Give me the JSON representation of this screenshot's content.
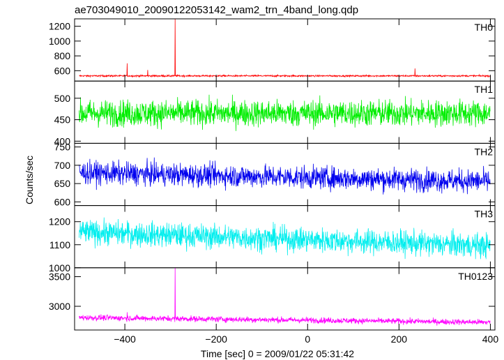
{
  "title": "ae703049010_20090122053142_wam2_trn_4band_long.qdp",
  "ylabel": "Counts/sec",
  "xlabel": "Time [sec] 0 = 2009/01/22 05:31:42",
  "chart_data": {
    "type": "line",
    "xlim": [
      -510,
      410
    ],
    "x_ticks": [
      -400,
      -200,
      0,
      200,
      400
    ],
    "x_tick_labels": [
      "−400",
      "−200",
      "0",
      "200",
      "400"
    ],
    "panels": [
      {
        "name": "TH0",
        "color": "#ff0000",
        "ylim": [
          460,
          1300
        ],
        "y_ticks": [
          600,
          800,
          1000,
          1200
        ],
        "baseline": 530,
        "noise": 8,
        "trend": 0,
        "spikes": [
          [
            -395,
            700
          ],
          [
            -350,
            610
          ],
          [
            -290,
            1300
          ],
          [
            235,
            630
          ]
        ]
      },
      {
        "name": "TH1",
        "color": "#00ee00",
        "ylim": [
          395,
          540
        ],
        "y_ticks": [
          400,
          450,
          500
        ],
        "baseline": 465,
        "noise": 22,
        "trend": 0,
        "spikes": []
      },
      {
        "name": "TH2",
        "color": "#0000ee",
        "ylim": [
          590,
          760
        ],
        "y_ticks": [
          600,
          650,
          700,
          750
        ],
        "baseline": 668,
        "noise": 22,
        "trend": -12,
        "spikes": []
      },
      {
        "name": "TH3",
        "color": "#00eeee",
        "ylim": [
          1000,
          1270
        ],
        "y_ticks": [
          1000,
          1100,
          1200
        ],
        "baseline": 1125,
        "noise": 38,
        "trend": -30,
        "spikes": []
      },
      {
        "name": "TH0123",
        "color": "#ff00ff",
        "ylim": [
          2600,
          3650
        ],
        "y_ticks": [
          3000,
          3500
        ],
        "baseline": 2770,
        "noise": 35,
        "trend": -40,
        "spikes": [
          [
            -290,
            3650
          ],
          [
            -395,
            2900
          ]
        ]
      }
    ]
  }
}
